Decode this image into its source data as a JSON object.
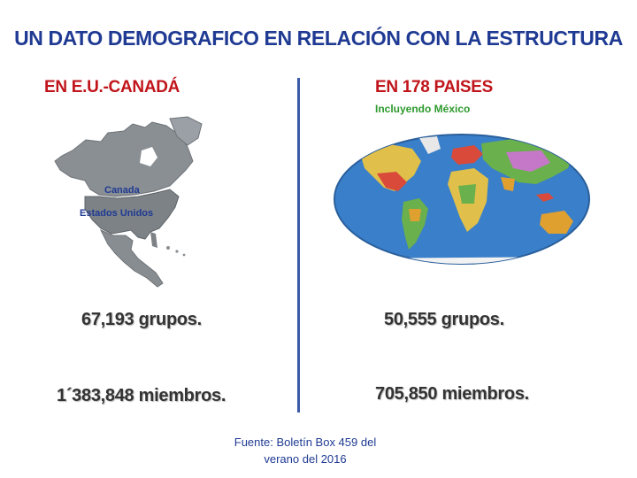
{
  "slide": {
    "title": "UN DATO DEMOGRAFICO EN RELACIÓN CON LA ESTRUCTURA",
    "left": {
      "heading": "EN E.U.-CANADÁ",
      "map_labels": {
        "canada": "Canada",
        "usa": "Estados Unidos"
      },
      "groups": "67,193 grupos.",
      "members": "1´383,848 miembros."
    },
    "right": {
      "heading": "EN 178 PAISES",
      "subheading": "Incluyendo México",
      "groups": "50,555 grupos.",
      "members": "705,850 miembros."
    },
    "source": {
      "line1": "Fuente: Boletín Box 459 del",
      "line2": "verano del 2016"
    }
  },
  "colors": {
    "title": "#1f3a93",
    "heading": "#c0151b",
    "subheading": "#2e9a2e",
    "divider": "#3b5aa8",
    "stat_text": "#333333"
  },
  "icons": {
    "left_map": "north-america-map-icon",
    "right_map": "world-map-icon"
  }
}
